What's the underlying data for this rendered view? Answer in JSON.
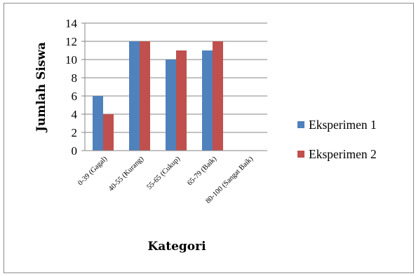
{
  "chart_data": {
    "type": "bar",
    "categories": [
      "0-39 (Gagal)",
      "40-55 (Kurang)",
      "55-65 (Cukup)",
      "65-79 (Baik)",
      "80-100 (Sangat Baik)"
    ],
    "series": [
      {
        "name": "Eksperimen 1",
        "values": [
          6,
          12,
          10,
          11,
          0
        ],
        "color": "#4F81BD"
      },
      {
        "name": "Eksperimen 2",
        "values": [
          4,
          12,
          11,
          12,
          0
        ],
        "color": "#C0504D"
      }
    ],
    "xlabel": "Kategori",
    "ylabel": "Jumlah Siswa",
    "ylim": [
      0,
      14
    ],
    "yticks": [
      0,
      2,
      4,
      6,
      8,
      10,
      12,
      14
    ],
    "grid": true,
    "legend_position": "right"
  }
}
